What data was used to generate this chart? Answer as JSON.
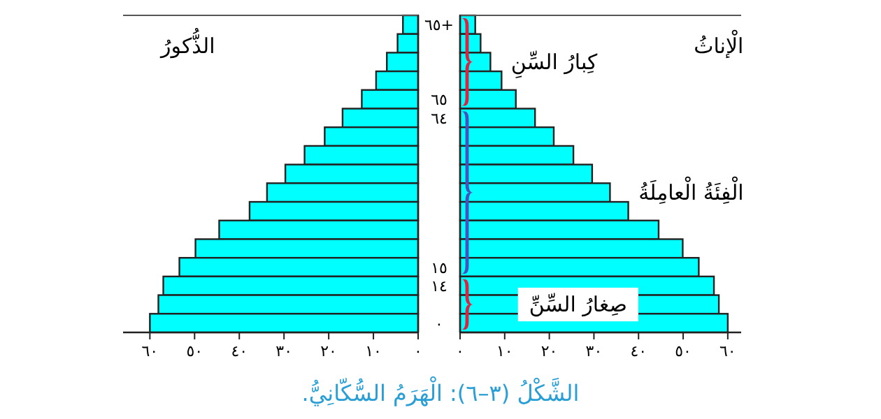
{
  "chart_data": [
    {
      "type": "bar",
      "orientation": "horizontal",
      "tick_labels": "x",
      "categories": [
        null,
        null,
        null,
        null,
        null,
        null,
        null,
        null,
        null,
        null,
        null,
        null,
        null,
        null,
        null,
        null,
        null
      ],
      "series": [
        {
          "name": "الذُّكورُ",
          "color": "#00ffff",
          "values": [
            3.4,
            4.6,
            7.0,
            9.4,
            12.6,
            16.9,
            20.9,
            25.4,
            29.7,
            33.8,
            37.7,
            44.5,
            49.8,
            53.4,
            57.0,
            58.1,
            60.0
          ]
        }
      ],
      "xlim": [
        66,
        0
      ],
      "xticks": [
        {
          "value": 60,
          "label": "٦٠"
        },
        {
          "value": 50,
          "label": "٥٠"
        },
        {
          "value": 40,
          "label": "٤٠"
        },
        {
          "value": 30,
          "label": "٣٠"
        },
        {
          "value": 20,
          "label": "٢٠"
        },
        {
          "value": 10,
          "label": "١٠"
        },
        {
          "value": 0,
          "label": "٠"
        }
      ]
    },
    {
      "type": "bar",
      "orientation": "horizontal",
      "categories": [
        "٦٥+",
        null,
        null,
        null,
        "٦٥",
        "٦٤",
        null,
        null,
        null,
        null,
        null,
        null,
        null,
        "١٥",
        "١٤",
        null,
        "٠"
      ],
      "series": [
        {
          "name": "الْإناثُ",
          "color": "#00ffff",
          "values": [
            3.4,
            4.6,
            6.8,
            9.3,
            12.5,
            16.8,
            21.0,
            25.4,
            29.6,
            33.6,
            37.7,
            44.5,
            49.9,
            53.5,
            56.9,
            58.0,
            60.0
          ]
        }
      ],
      "xlim": [
        0,
        63
      ],
      "xticks": [
        {
          "value": 0,
          "label": "٠"
        },
        {
          "value": 10,
          "label": "١٠"
        },
        {
          "value": 20,
          "label": "٢٠"
        },
        {
          "value": 30,
          "label": "٣٠"
        },
        {
          "value": 40,
          "label": "٤٠"
        },
        {
          "value": 50,
          "label": "٥٠"
        },
        {
          "value": 60,
          "label": "٦٠"
        }
      ],
      "annotations": [
        "كِبارُ السِّنِ",
        "الْفِئَةُ الْعامِلَةُ",
        "صِغارُ السِّنِّ",
        "الشَّكْلُ (٣–٦): الْهَرَمُ السُّكّانِيُّ."
      ]
    }
  ]
}
